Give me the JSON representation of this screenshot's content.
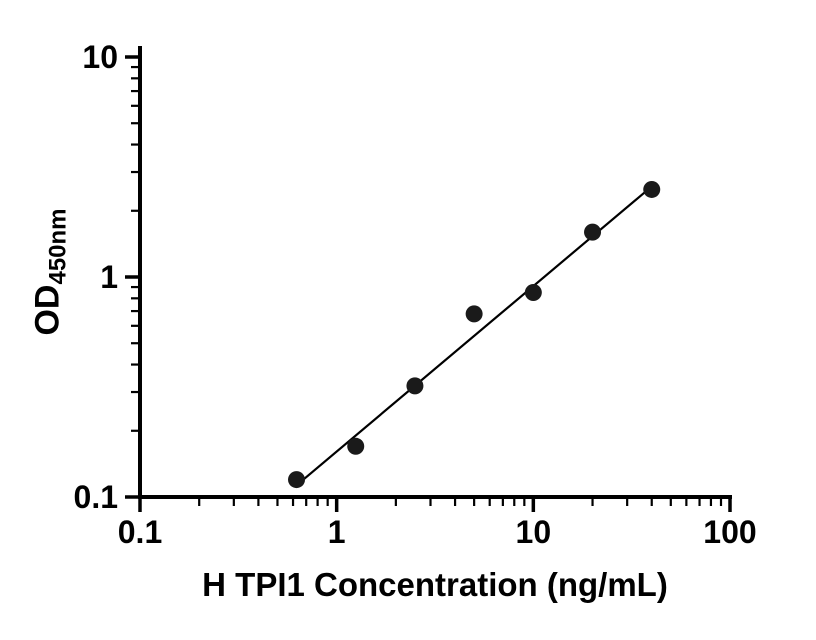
{
  "figure": {
    "background": "#ffffff",
    "axis_color": "#000000",
    "marker_color": "#1a1a1a",
    "fit_line_color": "#000000"
  },
  "chart_data": {
    "type": "scatter",
    "title": "",
    "x_scale": "log",
    "y_scale": "log",
    "xlabel": "H TPI1 Concentration (ng/mL)",
    "ylabel_main": "OD",
    "ylabel_sub": "450nm",
    "xlim": [
      0.1,
      100
    ],
    "ylim": [
      0.1,
      10
    ],
    "x_ticks": [
      0.1,
      1,
      10,
      100
    ],
    "x_tick_labels": [
      "0.1",
      "1",
      "10",
      "100"
    ],
    "y_ticks": [
      0.1,
      1,
      10
    ],
    "y_tick_labels": [
      "0.1",
      "1",
      "10"
    ],
    "grid": "off",
    "legend": "none",
    "points": {
      "x": [
        0.625,
        1.25,
        2.5,
        5,
        10,
        20,
        40
      ],
      "y": [
        0.12,
        0.17,
        0.32,
        0.68,
        0.85,
        1.6,
        2.5
      ]
    },
    "fit_line": {
      "x": [
        0.625,
        40
      ],
      "y": [
        0.113,
        2.58
      ]
    }
  }
}
